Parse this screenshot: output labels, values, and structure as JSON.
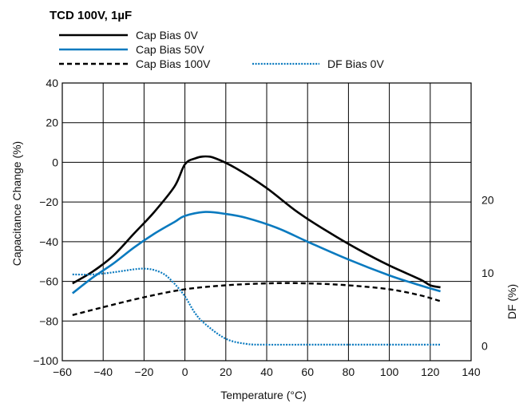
{
  "chart_data": {
    "type": "line",
    "title": "TCD 100V, 1µF",
    "xlabel": "Temperature (°C)",
    "ylabel": "Capacitance Change (%)",
    "y2label": "DF (%)",
    "xlim": [
      -60,
      140
    ],
    "ylim": [
      -100,
      40
    ],
    "y2lim": [
      -2,
      36
    ],
    "xticks": [
      -60,
      -40,
      -20,
      0,
      20,
      40,
      60,
      80,
      100,
      120,
      140
    ],
    "xtick_labels": [
      "−60",
      "−40",
      "−20",
      "0",
      "20",
      "40",
      "60",
      "80",
      "100",
      "120",
      "140"
    ],
    "yticks": [
      -100,
      -80,
      -60,
      -40,
      -20,
      0,
      20,
      40
    ],
    "ytick_labels": [
      "−100",
      "−80",
      "−60",
      "−40",
      "−20",
      "0",
      "20",
      "40"
    ],
    "y2ticks": [
      0,
      10,
      20
    ],
    "y2tick_labels": [
      "0",
      "10",
      "20"
    ],
    "grid": true,
    "legend_position": "top-left",
    "colors": {
      "black": "#000000",
      "blue": "#0a7abf",
      "grid": "#000000"
    },
    "series": [
      {
        "name": "Cap Bias 0V",
        "axis": "left",
        "style": "solid",
        "color": "#000000",
        "x": [
          -55,
          -45,
          -35,
          -25,
          -15,
          -5,
          0,
          5,
          10,
          15,
          25,
          40,
          55,
          70,
          85,
          100,
          115,
          120,
          125
        ],
        "y": [
          -61,
          -55,
          -47,
          -36,
          -25,
          -12,
          -1,
          2,
          3,
          2,
          -3,
          -13,
          -25,
          -35,
          -44,
          -52,
          -59,
          -62,
          -63
        ]
      },
      {
        "name": "Cap Bias 50V",
        "axis": "left",
        "style": "solid",
        "color": "#0a7abf",
        "x": [
          -55,
          -45,
          -35,
          -25,
          -15,
          -5,
          0,
          10,
          20,
          30,
          45,
          60,
          80,
          100,
          115,
          125
        ],
        "y": [
          -66,
          -58,
          -51,
          -43,
          -36,
          -30,
          -27,
          -25,
          -26,
          -28,
          -33,
          -40,
          -49,
          -57,
          -62,
          -65
        ]
      },
      {
        "name": "Cap Bias 100V",
        "axis": "left",
        "style": "dashed",
        "color": "#000000",
        "x": [
          -55,
          -40,
          -20,
          0,
          20,
          40,
          60,
          80,
          100,
          115,
          125
        ],
        "y": [
          -77,
          -73,
          -68,
          -64,
          -62,
          -61,
          -61,
          -62,
          -64,
          -67,
          -70
        ]
      },
      {
        "name": "DF Bias 0V",
        "axis": "right",
        "style": "dotted",
        "color": "#0a7abf",
        "x": [
          -55,
          -45,
          -35,
          -25,
          -20,
          -15,
          -10,
          -5,
          0,
          5,
          10,
          20,
          30,
          40,
          60,
          80,
          100,
          125
        ],
        "y": [
          9.8,
          9.8,
          10.1,
          10.5,
          10.6,
          10.4,
          9.8,
          8.5,
          6.8,
          4.5,
          3.0,
          1.0,
          0.3,
          0.2,
          0.2,
          0.2,
          0.2,
          0.2
        ]
      }
    ]
  }
}
